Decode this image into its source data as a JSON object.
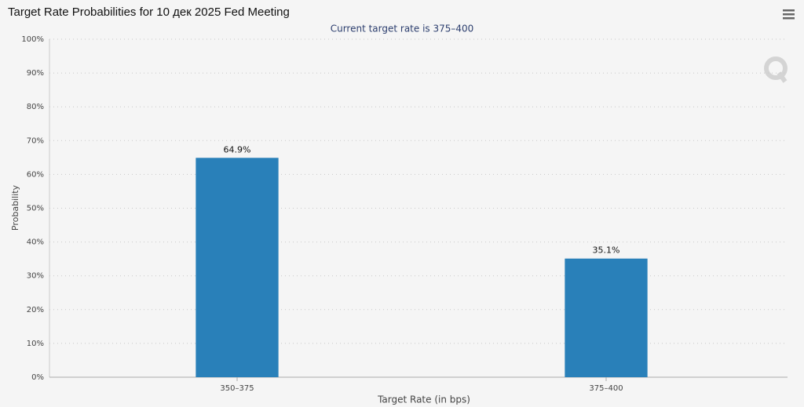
{
  "chart_data": {
    "type": "bar",
    "title": "Target Rate Probabilities for 10 дек 2025 Fed Meeting",
    "subtitle": "Current target rate is 375–400",
    "x_label": "Target Rate (in bps)",
    "y_label": "Probability",
    "categories": [
      "350–375",
      "375–400"
    ],
    "values": [
      64.9,
      35.1
    ],
    "value_labels": [
      "64.9%",
      "35.1%"
    ],
    "color": "#2980b9",
    "ylim": [
      0,
      100
    ],
    "yticks": [
      {
        "value": 0,
        "label": "0%"
      },
      {
        "value": 10,
        "label": "10%"
      },
      {
        "value": 20,
        "label": "20%"
      },
      {
        "value": 30,
        "label": "30%"
      },
      {
        "value": 40,
        "label": "40%"
      },
      {
        "value": 50,
        "label": "50%"
      },
      {
        "value": 60,
        "label": "60%"
      },
      {
        "value": 70,
        "label": "70%"
      },
      {
        "value": 80,
        "label": "80%"
      },
      {
        "value": 90,
        "label": "90%"
      },
      {
        "value": 100,
        "label": "100%"
      }
    ],
    "grid": true
  }
}
